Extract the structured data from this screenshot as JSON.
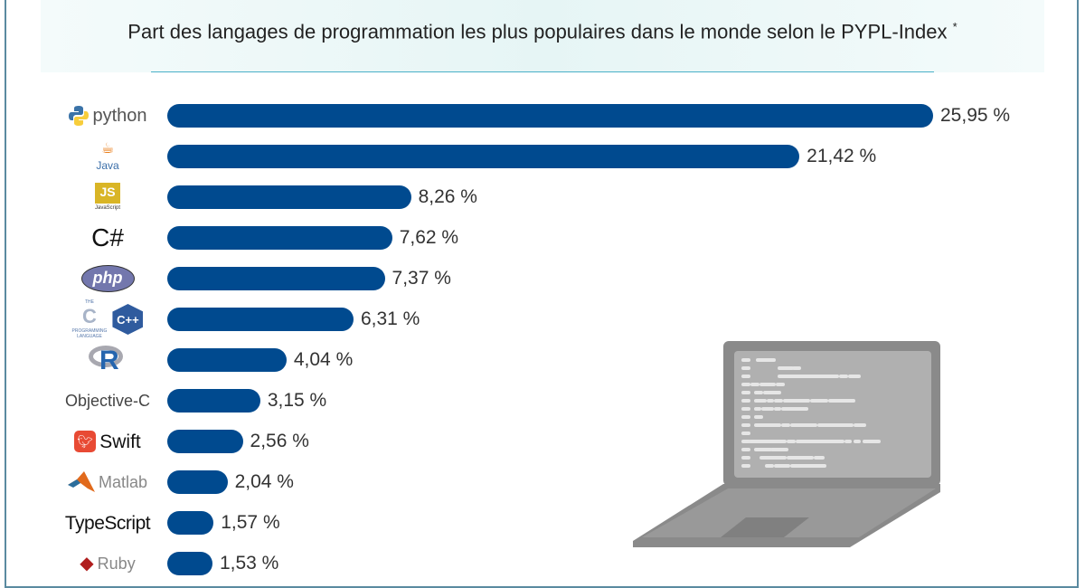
{
  "subtitle": "Part des langages de programmation les plus populaires dans le monde selon le PYPL-Index",
  "footnote_marker": "*",
  "chart_data": {
    "type": "bar",
    "orientation": "horizontal",
    "categories": [
      "Python",
      "Java",
      "JavaScript",
      "C#",
      "PHP",
      "C/C++",
      "R",
      "Objective-C",
      "Swift",
      "Matlab",
      "TypeScript",
      "Ruby"
    ],
    "values": [
      25.95,
      21.42,
      8.26,
      7.62,
      7.37,
      6.31,
      4.04,
      3.15,
      2.56,
      2.04,
      1.57,
      1.53
    ],
    "value_labels": [
      "25,95 %",
      "21,42 %",
      "8,26 %",
      "7,62 %",
      "7,37 %",
      "6,31 %",
      "4,04 %",
      "3,15 %",
      "2,56 %",
      "2,04 %",
      "1,57 %",
      "1,53 %"
    ],
    "unit": "%",
    "bar_color": "#004a8f",
    "grid": false,
    "legend": "none"
  },
  "logos": {
    "python": "python",
    "java": "Java",
    "javascript_js": "JS",
    "javascript": "JavaScript",
    "csharp": "C#",
    "php": "php",
    "c_the": "THE",
    "c": "C",
    "c_prog": "PROGRAMMING",
    "c_lang": "LANGUAGE",
    "cpp": "C++",
    "r": "R",
    "objc": "Objective-C",
    "swift": "Swift",
    "matlab": "Matlab",
    "typescript": "TypeScript",
    "ruby": "Ruby"
  }
}
